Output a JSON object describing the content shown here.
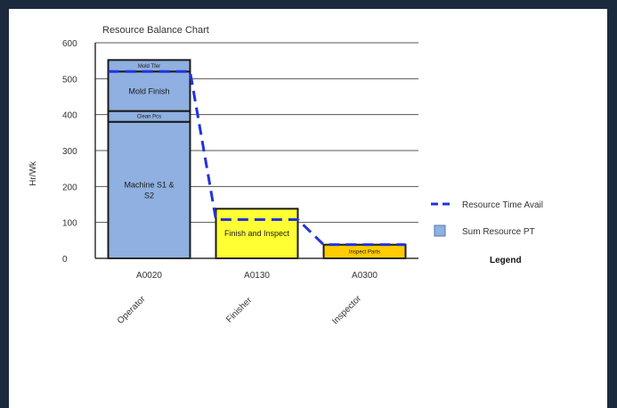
{
  "chart_data": {
    "type": "bar",
    "stacked": true,
    "title": "Resource Balance Chart",
    "ylabel": "Hr/Wk",
    "xlabel": "",
    "ylim": [
      0,
      600
    ],
    "yticks": [
      0,
      100,
      200,
      300,
      400,
      500,
      600
    ],
    "categories": [
      "A0020",
      "A0130",
      "A0300"
    ],
    "category_labels": [
      "Operator",
      "Finisher",
      "Inspector"
    ],
    "grid": true,
    "stacks": [
      {
        "category": "A0020",
        "color": "#8fb0e0",
        "segments": [
          {
            "label": "Machine S1 & S2",
            "lines": [
              "Machine S1 &",
              "S2"
            ],
            "from": 0,
            "to": 380
          },
          {
            "label": "Clean Pcs",
            "lines": [
              "Clean Pcs"
            ],
            "from": 380,
            "to": 410
          },
          {
            "label": "Mold Finish",
            "lines": [
              "Mold Finish"
            ],
            "from": 410,
            "to": 520
          },
          {
            "label": "Mold Tfer",
            "lines": [
              "Mold Tfer"
            ],
            "from": 520,
            "to": 552
          }
        ]
      },
      {
        "category": "A0130",
        "color": "#ffff33",
        "segments": [
          {
            "label": "Finish and Inspect",
            "lines": [
              "Finish and Inspect"
            ],
            "from": 0,
            "to": 138
          }
        ]
      },
      {
        "category": "A0300",
        "color": "#ffcc00",
        "segments": [
          {
            "label": "Inspect Parts",
            "lines": [
              "Inspect Parts"
            ],
            "from": 0,
            "to": 38
          }
        ]
      }
    ],
    "line_series": {
      "name": "Resource Time Avail",
      "color": "#2233dd",
      "values": [
        520,
        108,
        38
      ]
    },
    "legend": {
      "title": "Legend",
      "placement": "right",
      "entries": [
        {
          "name": "Resource Time Avail",
          "kind": "dash",
          "color": "#2233dd"
        },
        {
          "name": "Sum Resource PT",
          "kind": "box",
          "color": "#8fb0e0"
        }
      ]
    }
  }
}
